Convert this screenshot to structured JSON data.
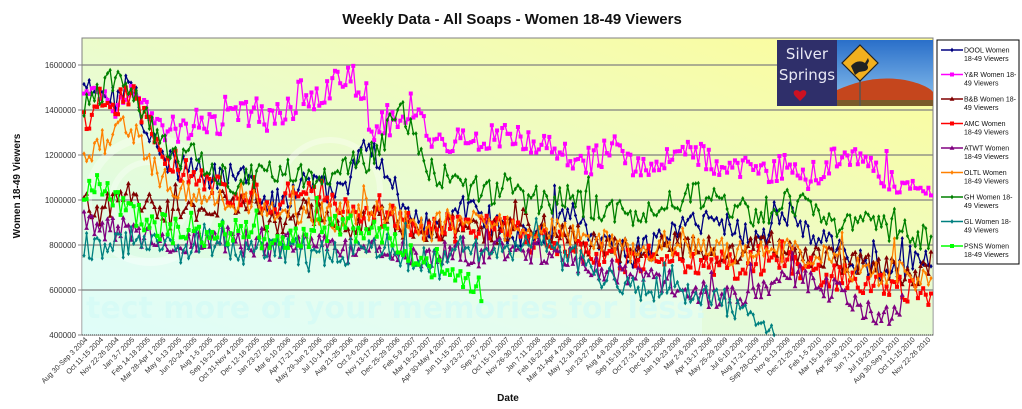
{
  "chart_data": {
    "type": "line",
    "title": "Weekly Data - All Soaps - Women 18-49 Viewers",
    "xlabel": "Date",
    "ylabel": "Women 18-49 Viewers",
    "ylim": [
      400000,
      1720000
    ],
    "yticks": [
      "400000",
      "600000",
      "800000",
      "1000000",
      "1200000",
      "1400000",
      "1600000"
    ],
    "ytick_values": [
      400000,
      600000,
      800000,
      1000000,
      1200000,
      1400000,
      1600000
    ],
    "grid": true,
    "legend_position": "right",
    "weeks_total": 325,
    "anchor_step_weeks": 6,
    "x_tick_labels": [
      "Aug 30-Sep 3 2004",
      "Oct 11-15 2004",
      "Nov 22-26 2004",
      "Jan 3-7 2005",
      "Feb 14-18 2005",
      "Mar 28-Apr 1 2005",
      "May 9-13 2005",
      "Jun 20-24 2005",
      "Aug 1-5 2005",
      "Sep 19-23 2005",
      "Oct 31-Nov 4 2005",
      "Dec 12-16 2005",
      "Jan 23-27 2006",
      "Mar 6-10 2006",
      "Apr 17-21 2006",
      "May 29-Jun 2 2006",
      "Jul 10-14 2006",
      "Aug 21-25 2006",
      "Oct 2-6 2006",
      "Nov 13-17 2006",
      "Dec 25-29 2006",
      "Feb 5-9 2007",
      "Mar 19-23 2007",
      "Apr 30-May 4 2007",
      "Jun 11-15 2007",
      "Jul 23-27 2007",
      "Sep 3-7 2007",
      "Oct 15-19 2007",
      "Nov 26-30 2007",
      "Jan 7-11 2008",
      "Feb 18-22 2008",
      "Mar 31-Apr 4 2008",
      "May 12-16 2008",
      "Jun 23-27 2008",
      "Aug 4-8 2008",
      "Sep 15-19 2008",
      "Oct 27-31 2008",
      "Dec 8-12 2008",
      "Jan 19-23 2009",
      "Mar 2-6 2009",
      "Apr 13-17 2009",
      "May 25-29 2009",
      "Jul 6-10 2009",
      "Aug 17-21 2009",
      "Sep 28-Oct 2 2009",
      "Nov 9-13 2009",
      "Dec 21-25 2009",
      "Feb 1-5 2010",
      "Mar 15-19 2010",
      "Apr 26-30 2010",
      "Jun 7-11 2010",
      "Jul 19-23 2010",
      "Aug 30-Sep 3 2010",
      "Oct 11-15 2010",
      "Nov 22-26 2010"
    ],
    "series": [
      {
        "name": "DOOL Women 18-49 Viewers",
        "color": "#000080",
        "marker": "diamond",
        "start_week": 0,
        "anchors": [
          1500000,
          1470000,
          1440000,
          1560000,
          1300000,
          1180000,
          1150000,
          1140000,
          1100000,
          1110000,
          1130000,
          1050000,
          980000,
          1020000,
          1080000,
          1060000,
          1020000,
          1100000,
          1250000,
          1150000,
          1020000,
          930000,
          870000,
          880000,
          960000,
          980000,
          900000,
          860000,
          830000,
          850000,
          900000,
          960000,
          880000,
          820000,
          780000,
          760000,
          800000,
          840000,
          880000,
          900000,
          920000,
          890000,
          860000,
          820000,
          900000,
          940000,
          860000,
          820000,
          780000,
          740000,
          720000,
          700000,
          730000,
          740000,
          720000
        ]
      },
      {
        "name": "Y&R Women 18-49 Viewers",
        "color": "#ff00ff",
        "marker": "square",
        "start_week": 0,
        "anchors": [
          1450000,
          1480000,
          1420000,
          1520000,
          1380000,
          1300000,
          1280000,
          1350000,
          1330000,
          1360000,
          1390000,
          1370000,
          1350000,
          1400000,
          1420000,
          1460000,
          1520000,
          1560000,
          1380000,
          1330000,
          1340000,
          1420000,
          1300000,
          1250000,
          1260000,
          1250000,
          1280000,
          1300000,
          1280000,
          1260000,
          1230000,
          1180000,
          1150000,
          1200000,
          1240000,
          1160000,
          1120000,
          1180000,
          1200000,
          1220000,
          1160000,
          1100000,
          1140000,
          1120000,
          1130000,
          1160000,
          1100000,
          1140000,
          1180000,
          1200000,
          1150000,
          1100000,
          1080000,
          1060000,
          1080000
        ]
      },
      {
        "name": "B&B Women 18-49 Viewers",
        "color": "#800000",
        "marker": "triangle",
        "start_week": 0,
        "anchors": [
          980000,
          950000,
          1000000,
          1020000,
          980000,
          960000,
          940000,
          960000,
          950000,
          1000000,
          980000,
          940000,
          900000,
          920000,
          950000,
          930000,
          900000,
          880000,
          920000,
          940000,
          880000,
          860000,
          850000,
          880000,
          870000,
          850000,
          860000,
          880000,
          900000,
          880000,
          860000,
          840000,
          820000,
          800000,
          780000,
          780000,
          770000,
          790000,
          800000,
          810000,
          790000,
          770000,
          760000,
          790000,
          800000,
          780000,
          760000,
          740000,
          730000,
          720000,
          700000,
          690000,
          680000,
          680000,
          660000
        ]
      },
      {
        "name": "AMC Women 18-49 Viewers",
        "color": "#ff0000",
        "marker": "square",
        "start_week": 0,
        "anchors": [
          1350000,
          1400000,
          1420000,
          1480000,
          1350000,
          1200000,
          1150000,
          1120000,
          1080000,
          1050000,
          1000000,
          1020000,
          980000,
          1020000,
          1040000,
          1000000,
          970000,
          950000,
          960000,
          930000,
          900000,
          880000,
          860000,
          880000,
          870000,
          860000,
          880000,
          860000,
          830000,
          820000,
          810000,
          800000,
          780000,
          760000,
          740000,
          730000,
          740000,
          760000,
          740000,
          720000,
          730000,
          710000,
          700000,
          720000,
          740000,
          720000,
          700000,
          680000,
          660000,
          640000,
          620000,
          610000,
          600000,
          590000,
          580000
        ]
      },
      {
        "name": "ATWT Women 18-49 Viewers",
        "color": "#800080",
        "marker": "triangle",
        "start_week": 0,
        "end_week": 313,
        "anchors": [
          900000,
          860000,
          870000,
          880000,
          850000,
          820000,
          800000,
          830000,
          850000,
          830000,
          810000,
          790000,
          780000,
          800000,
          820000,
          800000,
          790000,
          780000,
          800000,
          790000,
          770000,
          760000,
          750000,
          760000,
          780000,
          760000,
          770000,
          780000,
          790000,
          770000,
          760000,
          740000,
          720000,
          700000,
          680000,
          660000,
          650000,
          640000,
          620000,
          600000,
          580000,
          560000,
          580000,
          600000,
          640000,
          660000,
          650000,
          620000,
          590000,
          560000,
          520000,
          500000,
          520000
        ]
      },
      {
        "name": "OLTL Women 18-49 Viewers",
        "color": "#ff8000",
        "marker": "diamond",
        "start_week": 0,
        "anchors": [
          1150000,
          1250000,
          1300000,
          1320000,
          1200000,
          1100000,
          1050000,
          1000000,
          1020000,
          990000,
          980000,
          1000000,
          970000,
          950000,
          960000,
          930000,
          920000,
          940000,
          960000,
          940000,
          900000,
          880000,
          870000,
          900000,
          920000,
          890000,
          880000,
          870000,
          860000,
          870000,
          880000,
          860000,
          830000,
          800000,
          790000,
          780000,
          790000,
          800000,
          820000,
          800000,
          780000,
          770000,
          760000,
          780000,
          790000,
          770000,
          750000,
          740000,
          720000,
          700000,
          690000,
          680000,
          670000,
          660000,
          650000
        ]
      },
      {
        "name": "GH Women 18-49 Viewers",
        "color": "#008000",
        "marker": "diamond",
        "start_week": 0,
        "anchors": [
          1430000,
          1480000,
          1550000,
          1500000,
          1350000,
          1250000,
          1180000,
          1200000,
          1150000,
          1100000,
          1080000,
          1120000,
          1130000,
          1150000,
          1100000,
          1080000,
          1120000,
          1150000,
          1180000,
          1250000,
          1450000,
          1300000,
          1150000,
          1100000,
          1080000,
          1050000,
          1040000,
          1060000,
          1000000,
          980000,
          1000000,
          1020000,
          980000,
          950000,
          960000,
          920000,
          940000,
          980000,
          1000000,
          1020000,
          1030000,
          980000,
          950000,
          930000,
          960000,
          1000000,
          960000,
          920000,
          880000,
          900000,
          920000,
          880000,
          860000,
          840000,
          820000
        ]
      },
      {
        "name": "GL Women 18-49 Viewers",
        "color": "#008080",
        "marker": "diamond",
        "start_week": 0,
        "end_week": 264,
        "anchors": [
          800000,
          780000,
          790000,
          810000,
          800000,
          790000,
          770000,
          780000,
          790000,
          780000,
          760000,
          790000,
          800000,
          780000,
          770000,
          760000,
          750000,
          770000,
          780000,
          760000,
          750000,
          740000,
          730000,
          760000,
          780000,
          770000,
          780000,
          790000,
          800000,
          820000,
          800000,
          760000,
          700000,
          660000,
          640000,
          620000,
          600000,
          610000,
          600000,
          580000,
          560000,
          540000,
          520000,
          480000,
          440000
        ]
      },
      {
        "name": "PSNS Women 18-49 Viewers",
        "color": "#00ff00",
        "marker": "square",
        "start_week": 0,
        "end_week": 152,
        "anchors": [
          1040000,
          1060000,
          1000000,
          940000,
          900000,
          880000,
          860000,
          840000,
          860000,
          880000,
          870000,
          850000,
          830000,
          820000,
          840000,
          860000,
          880000,
          870000,
          850000,
          840000,
          800000,
          760000,
          700000,
          680000,
          640000,
          600000
        ]
      }
    ]
  },
  "legend": {
    "items": [
      {
        "line1": "DOOL Women",
        "line2": "18-49 Viewers"
      },
      {
        "line1": "Y&R Women 18-",
        "line2": "49 Viewers"
      },
      {
        "line1": "B&B Women 18-",
        "line2": "49 Viewers"
      },
      {
        "line1": "AMC Women",
        "line2": "18-49 Viewers"
      },
      {
        "line1": "ATWT Women",
        "line2": "18-49 Viewers"
      },
      {
        "line1": "OLTL Women",
        "line2": "18-49 Viewers"
      },
      {
        "line1": "GH Women 18-",
        "line2": "49 Viewers"
      },
      {
        "line1": "GL Women 18-",
        "line2": "49 Viewers"
      },
      {
        "line1": "PSNS Women",
        "line2": "18-49 Viewers"
      }
    ]
  },
  "logo": {
    "line1": "Silver",
    "line2": "Springs",
    "heart_color": "#cc1122"
  },
  "watermark": {
    "text": "tect more of your memories for less!"
  },
  "colors": {
    "plot_bg_top_right": "#fdfc9e",
    "plot_bg_bottom_left": "#d8fbf0",
    "gridline": "#808080",
    "logo_panel": "#2f2f6a"
  }
}
